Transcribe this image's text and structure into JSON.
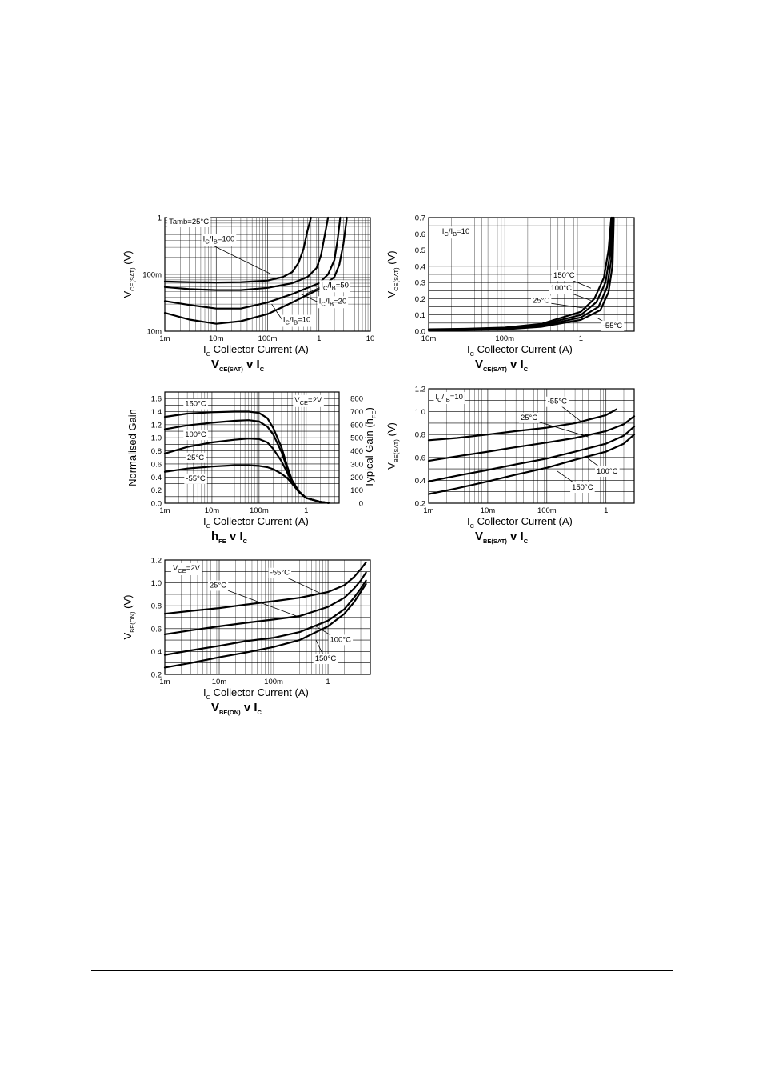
{
  "chart_data": [
    {
      "id": "c1",
      "type": "line",
      "title": {
        "main": "V",
        "sub": "CE(SAT)",
        "rest": " v I",
        "sub2": "C"
      },
      "xlabel": {
        "sym": "I",
        "sub": "C",
        "text": "Collector Current (A)"
      },
      "ylabel": {
        "sym": "V",
        "sub": "CE(SAT)",
        "text": "(V)"
      },
      "xscale": "log",
      "yscale": "log",
      "xlim": [
        0.001,
        10
      ],
      "ylim": [
        0.01,
        1
      ],
      "xticks": [
        0.001,
        0.01,
        0.1,
        1,
        10
      ],
      "xticklabels": [
        "1m",
        "10m",
        "100m",
        "1",
        "10"
      ],
      "yticks": [
        0.01,
        0.1,
        1
      ],
      "yticklabels": [
        "10m",
        "100m",
        "1"
      ],
      "series": [
        {
          "x": [
            0.001,
            0.003,
            0.01,
            0.03,
            0.1,
            0.2,
            0.3,
            0.4,
            0.5,
            0.6,
            0.7
          ],
          "y": [
            0.075,
            0.073,
            0.072,
            0.073,
            0.078,
            0.09,
            0.11,
            0.16,
            0.28,
            0.6,
            1.0
          ]
        },
        {
          "x": [
            0.001,
            0.003,
            0.01,
            0.03,
            0.1,
            0.3,
            0.6,
            0.9,
            1.1,
            1.3,
            1.5
          ],
          "y": [
            0.06,
            0.055,
            0.053,
            0.053,
            0.058,
            0.07,
            0.09,
            0.13,
            0.22,
            0.5,
            1.0
          ]
        },
        {
          "x": [
            0.001,
            0.003,
            0.01,
            0.03,
            0.1,
            0.3,
            1,
            1.5,
            2,
            2.3,
            2.6
          ],
          "y": [
            0.034,
            0.029,
            0.025,
            0.025,
            0.032,
            0.045,
            0.07,
            0.1,
            0.18,
            0.4,
            1.0
          ]
        },
        {
          "x": [
            0.001,
            0.003,
            0.01,
            0.03,
            0.1,
            0.3,
            1,
            2,
            2.5,
            3,
            3.5
          ],
          "y": [
            0.021,
            0.016,
            0.0135,
            0.015,
            0.02,
            0.032,
            0.055,
            0.09,
            0.15,
            0.35,
            1.0
          ]
        }
      ],
      "annotations": [
        {
          "lines": [
            "Tamb=25°C"
          ],
          "ax": 0.0012,
          "ay": 0.85,
          "anchor": "start"
        },
        {
          "lines": [
            "I",
            "C",
            "/I",
            "B",
            "=100"
          ],
          "ax": 0.0055,
          "ay": 0.42,
          "anchor": "start",
          "px": 0.12,
          "py": 0.1,
          "rich": true
        },
        {
          "lines": [
            "I",
            "C",
            "/I",
            "B",
            "=50"
          ],
          "ax": 1.1,
          "ay": 0.065,
          "anchor": "start",
          "px": 0.55,
          "py": 0.045,
          "rich": true
        },
        {
          "lines": [
            "I",
            "C",
            "/I",
            "B",
            "=20"
          ],
          "ax": 1.0,
          "ay": 0.034,
          "anchor": "start",
          "px": 0.45,
          "py": 0.045,
          "rich": true
        },
        {
          "lines": [
            "I",
            "C",
            "/I",
            "B",
            "=10"
          ],
          "ax": 0.2,
          "ay": 0.016,
          "anchor": "start",
          "px": 0.12,
          "py": 0.03,
          "rich": true
        }
      ]
    },
    {
      "id": "c2",
      "type": "line",
      "title": {
        "main": "V",
        "sub": "CE(SAT)",
        "rest": " v I",
        "sub2": "C"
      },
      "xlabel": {
        "sym": "I",
        "sub": "C",
        "text": "Collector Current (A)"
      },
      "ylabel": {
        "sym": "V",
        "sub": "CE(SAT)",
        "text": "(V)"
      },
      "xscale": "log",
      "yscale": "linear",
      "xlim": [
        0.01,
        5
      ],
      "ylim": [
        0,
        0.7
      ],
      "xticks": [
        0.01,
        0.1,
        1
      ],
      "xticklabels": [
        "10m",
        "100m",
        "1"
      ],
      "yticks": [
        0,
        0.1,
        0.2,
        0.3,
        0.4,
        0.5,
        0.6,
        0.7
      ],
      "yticklabels": [
        "0.0",
        "0.1",
        "0.2",
        "0.3",
        "0.4",
        "0.5",
        "0.6",
        "0.7"
      ],
      "series": [
        {
          "name": "150°C",
          "x": [
            0.01,
            0.03,
            0.1,
            0.3,
            1,
            1.5,
            2,
            2.3,
            2.5
          ],
          "y": [
            0.012,
            0.015,
            0.022,
            0.045,
            0.12,
            0.2,
            0.33,
            0.5,
            0.7
          ]
        },
        {
          "name": "100°C",
          "x": [
            0.01,
            0.03,
            0.1,
            0.3,
            1,
            1.6,
            2.1,
            2.4,
            2.55
          ],
          "y": [
            0.01,
            0.013,
            0.019,
            0.04,
            0.1,
            0.18,
            0.3,
            0.47,
            0.7
          ]
        },
        {
          "name": "25°C",
          "x": [
            0.01,
            0.03,
            0.1,
            0.3,
            1,
            1.7,
            2.2,
            2.5,
            2.62
          ],
          "y": [
            0.008,
            0.01,
            0.016,
            0.033,
            0.085,
            0.15,
            0.27,
            0.44,
            0.7
          ]
        },
        {
          "name": "-55°C",
          "x": [
            0.01,
            0.03,
            0.1,
            0.3,
            1,
            1.8,
            2.3,
            2.6,
            2.7
          ],
          "y": [
            0.006,
            0.008,
            0.012,
            0.027,
            0.07,
            0.13,
            0.24,
            0.41,
            0.7
          ]
        }
      ],
      "annotations": [
        {
          "lines": [
            "I",
            "C",
            "/I",
            "B",
            "=10"
          ],
          "ax": 0.015,
          "ay": 0.615,
          "anchor": "start",
          "rich": true
        },
        {
          "lines": [
            "150°C"
          ],
          "ax": 0.6,
          "ay": 0.345,
          "anchor": "middle",
          "px": 1.35,
          "py": 0.265
        },
        {
          "lines": [
            "100°C"
          ],
          "ax": 0.55,
          "ay": 0.265,
          "anchor": "middle",
          "px": 1.35,
          "py": 0.19
        },
        {
          "lines": [
            "25°C"
          ],
          "ax": 0.3,
          "ay": 0.19,
          "anchor": "middle",
          "px": 1.2,
          "py": 0.14
        },
        {
          "lines": [
            "-55°C"
          ],
          "ax": 2.6,
          "ay": 0.035,
          "anchor": "middle",
          "px": 1.6,
          "py": 0.085
        }
      ]
    },
    {
      "id": "c3",
      "type": "line",
      "title": {
        "main": "h",
        "sub": "FE",
        "rest": " v I",
        "sub2": "C"
      },
      "xlabel": {
        "sym": "I",
        "sub": "C",
        "text": "Collector Current (A)"
      },
      "ylabel": {
        "sym": "",
        "sub": "",
        "text": "Normalised Gain"
      },
      "ylabel_right": {
        "text": "Typical Gain (h",
        "sub": "FE",
        "close": ")"
      },
      "xscale": "log",
      "yscale": "linear",
      "xlim": [
        0.001,
        5
      ],
      "ylim": [
        0,
        1.7
      ],
      "xticks": [
        0.001,
        0.01,
        0.1,
        1
      ],
      "xticklabels": [
        "1m",
        "10m",
        "100m",
        "1"
      ],
      "yticks": [
        0,
        0.2,
        0.4,
        0.6,
        0.8,
        1.0,
        1.2,
        1.4,
        1.6
      ],
      "yticklabels": [
        "0.0",
        "0.2",
        "0.4",
        "0.6",
        "0.8",
        "1.0",
        "1.2",
        "1.4",
        "1.6"
      ],
      "y2ticklabels": [
        "0",
        "100",
        "200",
        "300",
        "400",
        "500",
        "600",
        "700",
        "800"
      ],
      "series": [
        {
          "name": "150°C",
          "x": [
            0.001,
            0.003,
            0.01,
            0.03,
            0.06,
            0.1,
            0.15,
            0.2,
            0.3,
            0.4,
            0.5,
            0.7,
            1,
            2,
            3
          ],
          "y": [
            1.32,
            1.37,
            1.39,
            1.4,
            1.4,
            1.38,
            1.3,
            1.15,
            0.85,
            0.55,
            0.35,
            0.18,
            0.08,
            0.02,
            0.005
          ]
        },
        {
          "name": "100°C",
          "x": [
            0.001,
            0.003,
            0.01,
            0.03,
            0.06,
            0.1,
            0.15,
            0.2,
            0.3,
            0.4,
            0.5,
            0.7,
            1,
            2,
            3
          ],
          "y": [
            1.13,
            1.19,
            1.23,
            1.26,
            1.27,
            1.25,
            1.17,
            1.05,
            0.78,
            0.52,
            0.35,
            0.18,
            0.08,
            0.02,
            0.005
          ]
        },
        {
          "name": "25°C",
          "x": [
            0.001,
            0.003,
            0.01,
            0.03,
            0.06,
            0.1,
            0.15,
            0.2,
            0.3,
            0.4,
            0.5,
            0.7,
            1,
            2,
            3
          ],
          "y": [
            0.76,
            0.86,
            0.93,
            0.97,
            0.99,
            0.98,
            0.93,
            0.83,
            0.64,
            0.46,
            0.32,
            0.17,
            0.08,
            0.02,
            0.005
          ]
        },
        {
          "name": "-55°C",
          "x": [
            0.001,
            0.003,
            0.01,
            0.03,
            0.06,
            0.1,
            0.15,
            0.2,
            0.3,
            0.4,
            0.5,
            0.7,
            1,
            2,
            3
          ],
          "y": [
            0.48,
            0.53,
            0.56,
            0.58,
            0.58,
            0.57,
            0.55,
            0.52,
            0.45,
            0.38,
            0.3,
            0.17,
            0.08,
            0.02,
            0.005
          ]
        }
      ],
      "annotations": [
        {
          "lines": [
            "150°C"
          ],
          "ax": 0.0045,
          "ay": 1.52,
          "anchor": "middle"
        },
        {
          "lines": [
            "V",
            "CE",
            "=2V"
          ],
          "ax": 1.1,
          "ay": 1.58,
          "anchor": "middle",
          "rich": true
        },
        {
          "lines": [
            "100°C"
          ],
          "ax": 0.0045,
          "ay": 1.05,
          "anchor": "middle"
        },
        {
          "lines": [
            "25°C"
          ],
          "ax": 0.0045,
          "ay": 0.7,
          "anchor": "middle"
        },
        {
          "lines": [
            "-55°C"
          ],
          "ax": 0.0045,
          "ay": 0.38,
          "anchor": "middle"
        }
      ]
    },
    {
      "id": "c4",
      "type": "line",
      "title": {
        "main": "V",
        "sub": "BE(SAT)",
        "rest": " v I",
        "sub2": "C"
      },
      "xlabel": {
        "sym": "I",
        "sub": "C",
        "text": "Collector Current (A)"
      },
      "ylabel": {
        "sym": "V",
        "sub": "BE(SAT)",
        "text": "(V)"
      },
      "xscale": "log",
      "yscale": "linear",
      "xlim": [
        0.001,
        3
      ],
      "ylim": [
        0.2,
        1.2
      ],
      "xticks": [
        0.001,
        0.01,
        0.1,
        1
      ],
      "xticklabels": [
        "1m",
        "10m",
        "100m",
        "1"
      ],
      "yticks": [
        0.2,
        0.4,
        0.6,
        0.8,
        1.0,
        1.2
      ],
      "yticklabels": [
        "0.2",
        "0.4",
        "0.6",
        "0.8",
        "1.0",
        "1.2"
      ],
      "series": [
        {
          "name": "-55°C",
          "x": [
            0.001,
            0.003,
            0.01,
            0.03,
            0.1,
            0.3,
            1,
            1.5
          ],
          "y": [
            0.75,
            0.77,
            0.8,
            0.83,
            0.86,
            0.9,
            0.97,
            1.02
          ]
        },
        {
          "name": "25°C",
          "x": [
            0.001,
            0.003,
            0.01,
            0.03,
            0.1,
            0.3,
            1,
            2,
            3
          ],
          "y": [
            0.57,
            0.61,
            0.65,
            0.69,
            0.73,
            0.77,
            0.83,
            0.89,
            0.96
          ]
        },
        {
          "name": "100°C",
          "x": [
            0.001,
            0.003,
            0.01,
            0.03,
            0.1,
            0.3,
            1,
            2,
            3
          ],
          "y": [
            0.39,
            0.44,
            0.49,
            0.54,
            0.59,
            0.65,
            0.72,
            0.79,
            0.87
          ]
        },
        {
          "name": "150°C",
          "x": [
            0.001,
            0.003,
            0.01,
            0.03,
            0.1,
            0.3,
            1,
            2,
            3
          ],
          "y": [
            0.28,
            0.33,
            0.39,
            0.45,
            0.51,
            0.58,
            0.65,
            0.72,
            0.8
          ]
        }
      ],
      "annotations": [
        {
          "lines": [
            "I",
            "C",
            "/I",
            "B",
            "=10"
          ],
          "ax": 0.0013,
          "ay": 1.13,
          "anchor": "start",
          "rich": true
        },
        {
          "lines": [
            "-55°C"
          ],
          "ax": 0.15,
          "ay": 1.09,
          "anchor": "middle",
          "px": 0.4,
          "py": 0.905
        },
        {
          "lines": [
            "25°C"
          ],
          "ax": 0.05,
          "ay": 0.95,
          "anchor": "middle",
          "px": 0.5,
          "py": 0.78
        },
        {
          "lines": [
            "100°C"
          ],
          "ax": 1.05,
          "ay": 0.48,
          "anchor": "middle",
          "px": 0.5,
          "py": 0.59
        },
        {
          "lines": [
            "150°C"
          ],
          "ax": 0.4,
          "ay": 0.34,
          "anchor": "middle",
          "px": 0.15,
          "py": 0.48
        }
      ]
    },
    {
      "id": "c5",
      "type": "line",
      "title": {
        "main": "V",
        "sub": "BE(ON)",
        "rest": " v I",
        "sub2": "C"
      },
      "xlabel": {
        "sym": "I",
        "sub": "C",
        "text": "Collector Current (A)"
      },
      "ylabel": {
        "sym": "V",
        "sub": "BE(ON)",
        "text": "(V)"
      },
      "xscale": "log",
      "yscale": "linear",
      "xlim": [
        0.001,
        6
      ],
      "ylim": [
        0.2,
        1.2
      ],
      "xticks": [
        0.001,
        0.01,
        0.1,
        1
      ],
      "xticklabels": [
        "1m",
        "10m",
        "100m",
        "1"
      ],
      "yticks": [
        0.2,
        0.4,
        0.6,
        0.8,
        1.0,
        1.2
      ],
      "yticklabels": [
        "0.2",
        "0.4",
        "0.6",
        "0.8",
        "1.0",
        "1.2"
      ],
      "series": [
        {
          "name": "-55°C",
          "x": [
            0.001,
            0.003,
            0.01,
            0.03,
            0.1,
            0.3,
            1,
            2,
            3,
            4,
            5
          ],
          "y": [
            0.73,
            0.755,
            0.78,
            0.81,
            0.84,
            0.87,
            0.92,
            0.98,
            1.05,
            1.12,
            1.18
          ]
        },
        {
          "name": "25°C",
          "x": [
            0.001,
            0.003,
            0.01,
            0.03,
            0.1,
            0.3,
            1,
            2,
            3,
            4,
            5
          ],
          "y": [
            0.55,
            0.585,
            0.62,
            0.65,
            0.68,
            0.71,
            0.79,
            0.87,
            0.95,
            1.02,
            1.09
          ]
        },
        {
          "name": "100°C",
          "x": [
            0.001,
            0.003,
            0.01,
            0.03,
            0.1,
            0.3,
            1,
            2,
            3,
            4,
            5
          ],
          "y": [
            0.37,
            0.41,
            0.45,
            0.49,
            0.52,
            0.57,
            0.67,
            0.77,
            0.87,
            0.95,
            1.02
          ]
        },
        {
          "name": "150°C",
          "x": [
            0.001,
            0.003,
            0.01,
            0.03,
            0.1,
            0.3,
            1,
            2,
            3,
            4,
            5
          ],
          "y": [
            0.26,
            0.3,
            0.35,
            0.39,
            0.44,
            0.5,
            0.62,
            0.73,
            0.83,
            0.92,
            0.99
          ]
        }
      ],
      "annotations": [
        {
          "lines": [
            "V",
            "CE",
            "=2V"
          ],
          "ax": 0.0014,
          "ay": 1.13,
          "anchor": "start",
          "rich": true
        },
        {
          "lines": [
            "-55°C"
          ],
          "ax": 0.13,
          "ay": 1.09,
          "anchor": "middle",
          "px": 0.75,
          "py": 0.905
        },
        {
          "lines": [
            "25°C"
          ],
          "ax": 0.0095,
          "ay": 0.98,
          "anchor": "middle",
          "px": 0.3,
          "py": 0.7
        },
        {
          "lines": [
            "100°C"
          ],
          "ax": 1.7,
          "ay": 0.505,
          "anchor": "middle",
          "px": 0.6,
          "py": 0.62
        },
        {
          "lines": [
            "150°C"
          ],
          "ax": 0.9,
          "ay": 0.34,
          "anchor": "middle",
          "px": 0.6,
          "py": 0.5
        }
      ]
    }
  ]
}
